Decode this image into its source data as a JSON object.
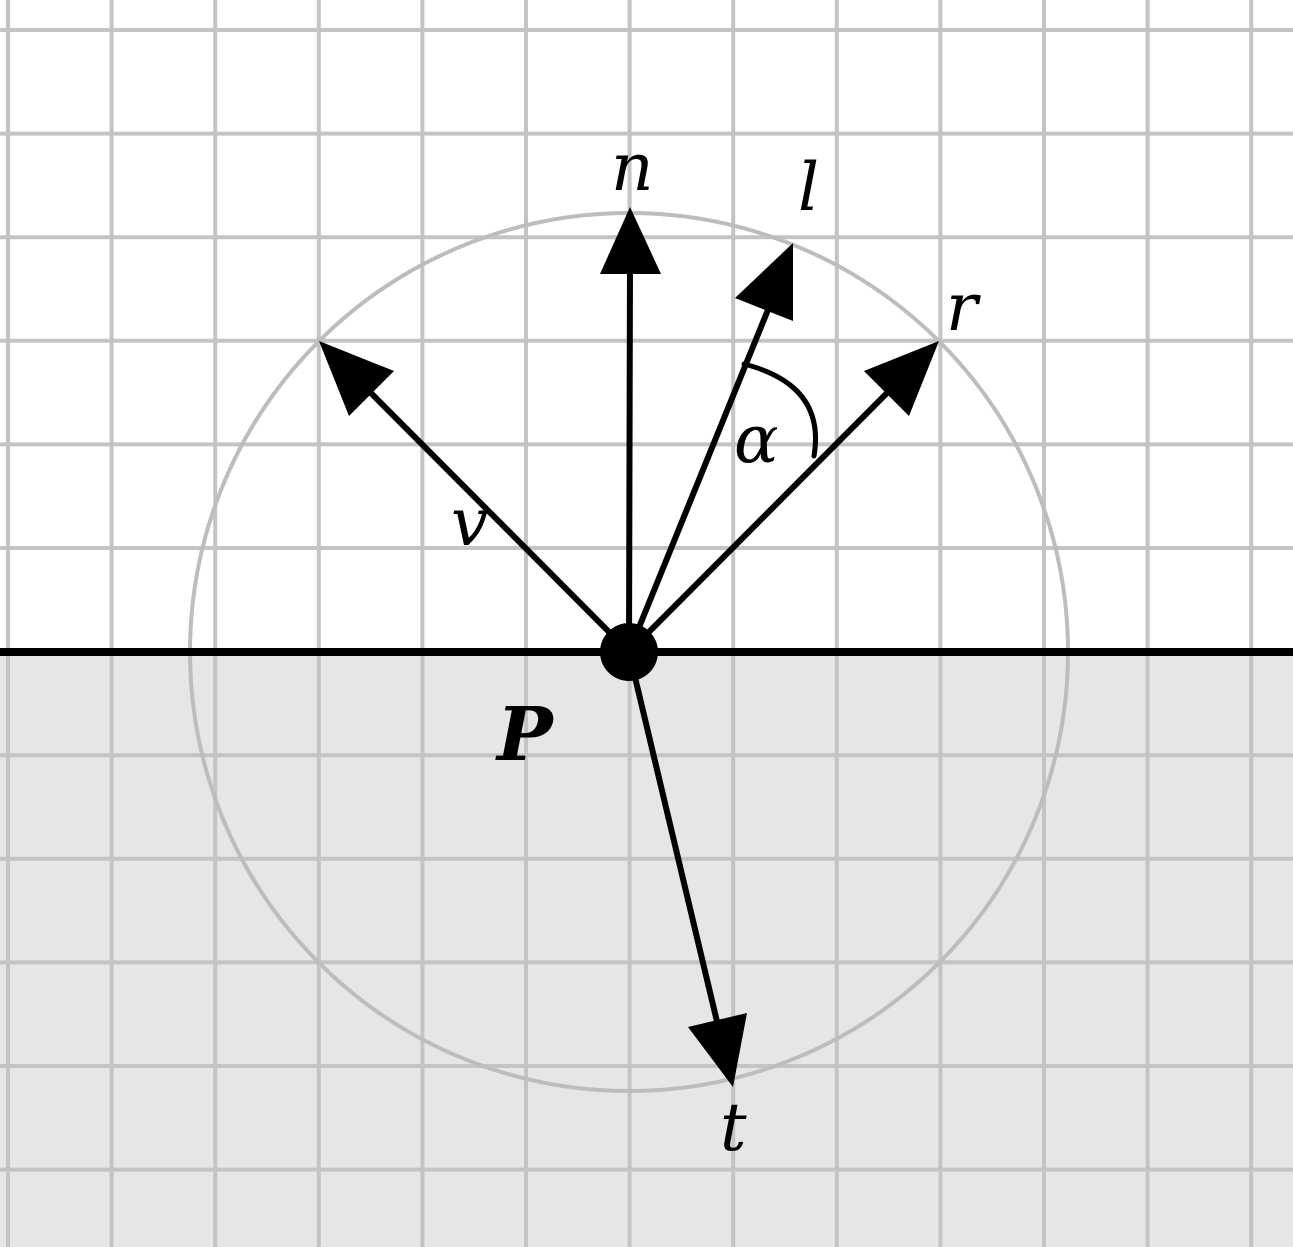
{
  "labels": {
    "point": "P",
    "normal": "n",
    "light": "l",
    "reflect": "r",
    "view": "v",
    "transmit": "t",
    "angle": "α"
  },
  "colors": {
    "background": "#ffffff",
    "lower_medium": "#e6e6e6",
    "grid": "#c4c4c4",
    "circle": "#bdbdbd",
    "ink": "#000000"
  }
}
